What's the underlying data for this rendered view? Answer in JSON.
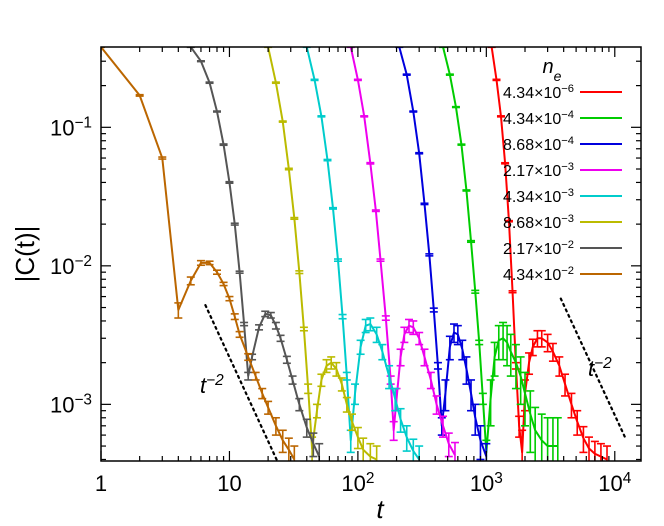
{
  "chart_data": {
    "type": "line",
    "xlabel": "t",
    "ylabel": "|C(t)|",
    "xscale": "log",
    "yscale": "log",
    "xlim": [
      1,
      16000
    ],
    "ylim": [
      0.00039,
      0.38
    ],
    "x_ticks": [
      {
        "value": 1,
        "label": "1"
      },
      {
        "value": 10,
        "label": "10"
      },
      {
        "value": 100,
        "label": "10",
        "exp": "2"
      },
      {
        "value": 1000,
        "label": "10",
        "exp": "3"
      },
      {
        "value": 10000,
        "label": "10",
        "exp": "4"
      }
    ],
    "y_ticks": [
      {
        "value": 0.001,
        "label": "10",
        "exp": "−3"
      },
      {
        "value": 0.01,
        "label": "10",
        "exp": "−2"
      },
      {
        "value": 0.1,
        "label": "10",
        "exp": "−1"
      }
    ],
    "grid": false,
    "legend": {
      "title": "n",
      "title_sub": "e",
      "position": "top-right"
    },
    "annotations": [
      {
        "text": "t",
        "exp": "−2",
        "position": "left"
      },
      {
        "text": "t",
        "exp": "−2",
        "position": "right"
      }
    ],
    "reference_lines": [
      {
        "slope": -2,
        "x": [
          6.5,
          30
        ],
        "y": [
          0.0052,
          0.00024
        ],
        "style": "dotted"
      },
      {
        "slope": -2,
        "x": [
          3800,
          12000
        ],
        "y": [
          0.0058,
          0.00058
        ],
        "style": "dotted"
      }
    ],
    "series": [
      {
        "name": "4.34×10",
        "exp": "−6",
        "color": "#ff0000",
        "x": [
          1100,
          1200,
          1300,
          1400,
          1500,
          1600,
          1700,
          1800,
          1900,
          2000,
          2150,
          2300,
          2500,
          2700,
          3000,
          3300,
          3700,
          4100,
          4600,
          5100,
          5700,
          6300,
          7000,
          7800,
          8700
        ],
        "y": [
          0.38,
          0.22,
          0.12,
          0.055,
          0.021,
          0.0065,
          0.0019,
          0.0007,
          0.00045,
          0.0012,
          0.002,
          0.0026,
          0.003,
          0.003,
          0.0028,
          0.0024,
          0.0019,
          0.0014,
          0.001,
          0.00075,
          0.00057,
          0.00048,
          0.00044,
          0.00042,
          0.0004
        ],
        "err": [
          0.002,
          0.002,
          0.001,
          0.0005,
          0.0002,
          0.0001,
          0.0001,
          0.00012,
          0.0002,
          0.0003,
          0.00035,
          0.00035,
          0.0004,
          0.0004,
          0.0004,
          0.00035,
          0.0003,
          0.00025,
          0.0002,
          0.00015,
          0.00012,
          0.0001,
          0.0001,
          0.0001,
          0.0001
        ]
      },
      {
        "name": "4.34×10",
        "exp": "−4",
        "color": "#00cc00",
        "x": [
          460,
          520,
          580,
          640,
          700,
          760,
          820,
          880,
          940,
          1000,
          1080,
          1160,
          1250,
          1350,
          1450,
          1550,
          1700,
          1850,
          2000,
          2200,
          2400,
          2700,
          3000,
          3300,
          3600
        ],
        "y": [
          0.38,
          0.24,
          0.14,
          0.075,
          0.035,
          0.015,
          0.0065,
          0.0028,
          0.0011,
          0.00045,
          0.0011,
          0.0022,
          0.0029,
          0.003,
          0.0028,
          0.0024,
          0.002,
          0.0016,
          0.0012,
          0.00085,
          0.00065,
          0.00055,
          0.0005,
          0.0005,
          0.0005
        ],
        "err": [
          0.002,
          0.002,
          0.001,
          0.0006,
          0.0003,
          0.0002,
          0.00015,
          0.0001,
          0.0001,
          0.0001,
          0.0004,
          0.0006,
          0.0008,
          0.0009,
          0.0009,
          0.0008,
          0.0007,
          0.0006,
          0.0005,
          0.0004,
          0.0003,
          0.0003,
          0.0003,
          0.0003,
          0.0003
        ]
      },
      {
        "name": "8.68×10",
        "exp": "−4",
        "color": "#0000dd",
        "x": [
          210,
          240,
          270,
          300,
          330,
          360,
          390,
          420,
          450,
          480,
          520,
          560,
          600,
          650,
          700,
          760,
          820,
          900,
          1000
        ],
        "y": [
          0.38,
          0.24,
          0.13,
          0.065,
          0.028,
          0.012,
          0.0048,
          0.0019,
          0.0007,
          0.0012,
          0.0026,
          0.0033,
          0.0032,
          0.0025,
          0.0018,
          0.0012,
          0.0008,
          0.00055,
          0.00042
        ],
        "err": [
          0.002,
          0.002,
          0.001,
          0.0006,
          0.0003,
          0.0002,
          0.00015,
          0.0001,
          0.0001,
          0.0003,
          0.0005,
          0.0005,
          0.0005,
          0.0004,
          0.0004,
          0.0003,
          0.0002,
          0.00015,
          0.0001
        ]
      },
      {
        "name": "2.17×10",
        "exp": "−3",
        "color": "#ee00ee",
        "x": [
          88,
          100,
          112,
          125,
          138,
          150,
          165,
          180,
          190,
          200,
          215,
          230,
          250,
          270,
          300,
          330,
          370,
          410,
          460,
          510,
          570
        ],
        "y": [
          0.38,
          0.22,
          0.12,
          0.055,
          0.025,
          0.011,
          0.0042,
          0.0015,
          0.00065,
          0.0011,
          0.0022,
          0.0032,
          0.0037,
          0.0036,
          0.003,
          0.0022,
          0.0015,
          0.001,
          0.0007,
          0.00052,
          0.00043
        ],
        "err": [
          0.002,
          0.002,
          0.001,
          0.0006,
          0.0003,
          0.0002,
          0.00015,
          0.0001,
          0.0001,
          0.0002,
          0.0003,
          0.0004,
          0.0004,
          0.0004,
          0.0003,
          0.0003,
          0.0002,
          0.00015,
          0.00012,
          0.0001,
          0.0001
        ]
      },
      {
        "name": "4.34×10",
        "exp": "−3",
        "color": "#00cccc",
        "x": [
          40,
          46,
          52,
          58,
          64,
          70,
          76,
          82,
          88,
          95,
          105,
          115,
          125,
          140,
          155,
          175,
          195,
          215,
          240,
          270,
          300
        ],
        "y": [
          0.38,
          0.22,
          0.12,
          0.058,
          0.026,
          0.011,
          0.0043,
          0.0016,
          0.00055,
          0.0012,
          0.0026,
          0.0037,
          0.0038,
          0.0032,
          0.0024,
          0.0016,
          0.0011,
          0.00078,
          0.00058,
          0.00046,
          0.0004
        ],
        "err": [
          0.002,
          0.002,
          0.001,
          0.0006,
          0.0003,
          0.0002,
          0.00015,
          0.0001,
          0.0001,
          0.0002,
          0.0003,
          0.0004,
          0.0004,
          0.0004,
          0.0003,
          0.0003,
          0.0002,
          0.00015,
          0.00012,
          0.0001,
          0.0001
        ]
      },
      {
        "name": "8.68×10",
        "exp": "−3",
        "color": "#bbbb00",
        "x": [
          20,
          23,
          26,
          29,
          32,
          35,
          38,
          41,
          44,
          48,
          52,
          57,
          62,
          68,
          75,
          82,
          90,
          100,
          110,
          125,
          140
        ],
        "y": [
          0.38,
          0.21,
          0.11,
          0.05,
          0.022,
          0.009,
          0.0035,
          0.0013,
          0.00048,
          0.0009,
          0.0015,
          0.0019,
          0.002,
          0.0018,
          0.0014,
          0.001,
          0.00075,
          0.00058,
          0.00047,
          0.00042,
          0.0004
        ],
        "err": [
          0.002,
          0.002,
          0.001,
          0.0006,
          0.0003,
          0.0002,
          0.0001,
          0.0001,
          0.0001,
          0.0001,
          0.00015,
          0.0002,
          0.0002,
          0.0002,
          0.00015,
          0.00012,
          0.0001,
          0.0001,
          0.0001,
          0.0001,
          0.0001
        ]
      },
      {
        "name": "2.17×10",
        "exp": "−2",
        "color": "#555555",
        "x": [
          5,
          6,
          7,
          8,
          9,
          10,
          11,
          12,
          13,
          14,
          15,
          17,
          19,
          21,
          23,
          25,
          28,
          31,
          35,
          40,
          45,
          50
        ],
        "y": [
          0.38,
          0.3,
          0.21,
          0.13,
          0.075,
          0.04,
          0.02,
          0.009,
          0.0038,
          0.0016,
          0.0022,
          0.0036,
          0.0045,
          0.0044,
          0.0037,
          0.003,
          0.0021,
          0.0015,
          0.001,
          0.00068,
          0.00052,
          0.00042
        ],
        "err": [
          0.002,
          0.002,
          0.002,
          0.001,
          0.0008,
          0.0005,
          0.0003,
          0.00015,
          0.0001,
          0.0001,
          0.0001,
          0.00015,
          0.0002,
          0.0002,
          0.0002,
          0.00015,
          0.00012,
          0.0001,
          0.0001,
          0.0001,
          0.0001,
          0.0001
        ]
      },
      {
        "name": "4.34×10",
        "exp": "−2",
        "color": "#bb6600",
        "x": [
          1,
          2,
          3,
          4,
          5,
          6,
          7,
          8,
          9,
          10,
          11,
          12,
          14,
          16,
          18,
          20,
          23,
          26,
          29,
          32
        ],
        "y": [
          0.38,
          0.17,
          0.06,
          0.0048,
          0.0078,
          0.0105,
          0.0105,
          0.009,
          0.0074,
          0.0058,
          0.0043,
          0.0032,
          0.0022,
          0.0016,
          0.0012,
          0.00095,
          0.0007,
          0.00055,
          0.00047,
          0.0004
        ],
        "err": [
          0.002,
          0.002,
          0.001,
          0.0006,
          0.0005,
          0.0004,
          0.0003,
          0.0003,
          0.0002,
          0.0002,
          0.0002,
          0.00015,
          0.00012,
          0.0001,
          0.0001,
          0.0001,
          0.0001,
          0.0001,
          0.0001,
          0.0001
        ]
      }
    ]
  }
}
